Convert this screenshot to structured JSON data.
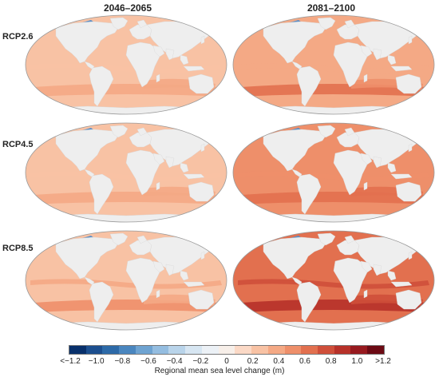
{
  "columns": [
    "2046–2065",
    "2081–2100"
  ],
  "rows": [
    "RCP2.6",
    "RCP4.5",
    "RCP8.5"
  ],
  "colorbar": {
    "title": "Regional mean sea level change (m)",
    "ticks": [
      "<−1.2",
      "−1.0",
      "−0.8",
      "−0.6",
      "−0.4",
      "−0.2",
      "0",
      "0.2",
      "0.4",
      "0.6",
      "0.8",
      "1.0",
      ">1.2"
    ],
    "colors": [
      "#08306b",
      "#1c4f8f",
      "#2d6aa8",
      "#4a86bf",
      "#6ea3d1",
      "#94bde0",
      "#b9d4ea",
      "#d7e6f2",
      "#ecf1f6",
      "#f7efe9",
      "#fbd9c6",
      "#f8c2a4",
      "#f4a985",
      "#ee8f6a",
      "#e2704f",
      "#cf4f3a",
      "#b73129",
      "#971a1f",
      "#6c0a14"
    ]
  },
  "panels": [
    {
      "scenario": "RCP2.6",
      "period": "2046–2065",
      "level": 0.22
    },
    {
      "scenario": "RCP2.6",
      "period": "2081–2100",
      "level": 0.4
    },
    {
      "scenario": "RCP4.5",
      "period": "2046–2065",
      "level": 0.24
    },
    {
      "scenario": "RCP4.5",
      "period": "2081–2100",
      "level": 0.48
    },
    {
      "scenario": "RCP8.5",
      "period": "2046–2065",
      "level": 0.3
    },
    {
      "scenario": "RCP8.5",
      "period": "2081–2100",
      "level": 0.72
    }
  ]
}
